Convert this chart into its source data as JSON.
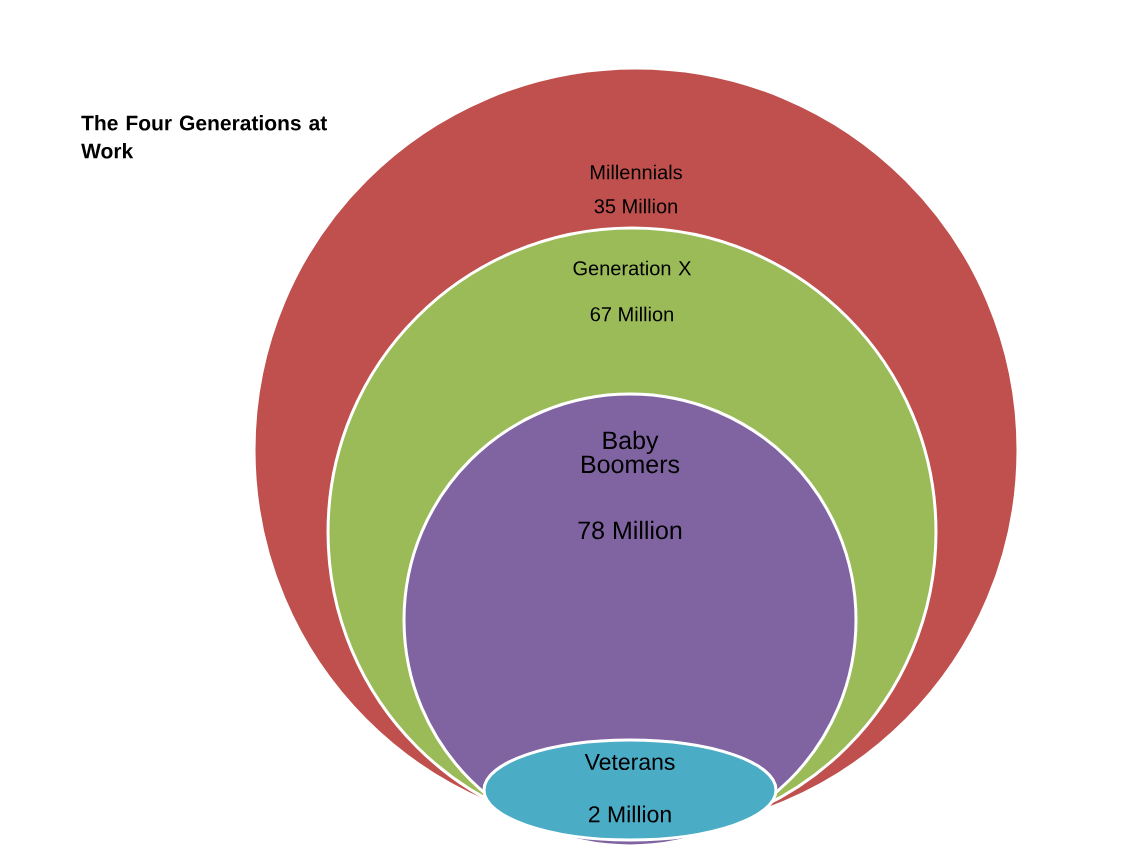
{
  "chart_data": {
    "type": "other",
    "title": "The Four Generations at Work",
    "ylabel": "Million",
    "categories": [
      "Millennials",
      "Generation X",
      "Baby Boomers",
      "Veterans"
    ],
    "values": [
      35,
      67,
      78,
      2
    ],
    "data_labels": true,
    "colors": [
      "#c0504d",
      "#9bbb59",
      "#8064a2",
      "#4bacc6"
    ]
  }
}
